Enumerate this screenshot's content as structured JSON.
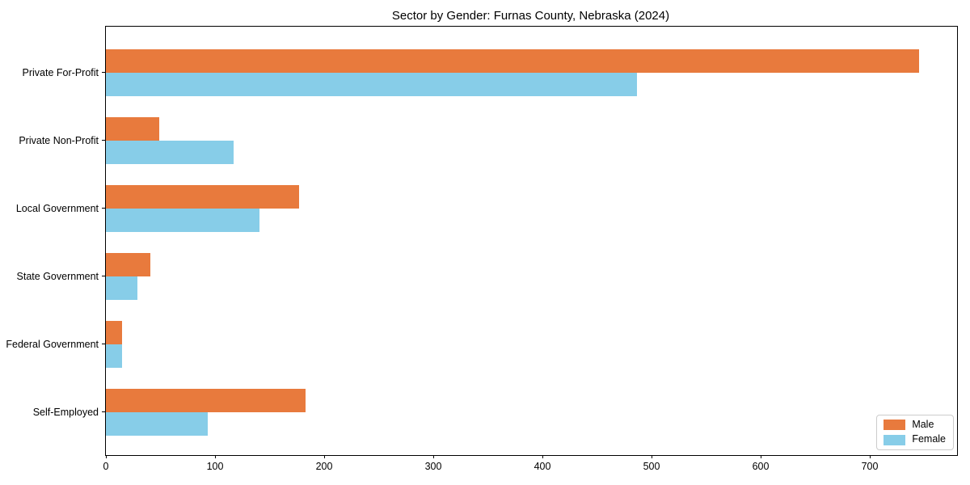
{
  "chart_data": {
    "type": "bar",
    "orientation": "horizontal",
    "title": "Sector by Gender: Furnas County, Nebraska (2024)",
    "categories": [
      "Private For-Profit",
      "Private Non-Profit",
      "Local Government",
      "State Government",
      "Federal Government",
      "Self-Employed"
    ],
    "series": [
      {
        "name": "Male",
        "color": "#e87a3d",
        "values": [
          745,
          49,
          177,
          41,
          15,
          183
        ]
      },
      {
        "name": "Female",
        "color": "#87cde8",
        "values": [
          487,
          117,
          141,
          29,
          15,
          93
        ]
      }
    ],
    "xlabel": "",
    "ylabel": "",
    "xlim": [
      0,
      780
    ],
    "x_ticks": [
      0,
      100,
      200,
      300,
      400,
      500,
      600,
      700
    ],
    "grid": false,
    "legend": {
      "position": "lower right",
      "entries": [
        "Male",
        "Female"
      ]
    }
  }
}
